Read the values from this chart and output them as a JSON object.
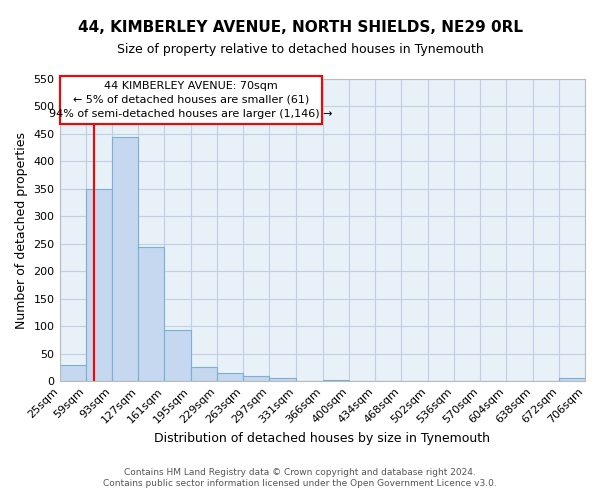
{
  "title": "44, KIMBERLEY AVENUE, NORTH SHIELDS, NE29 0RL",
  "subtitle": "Size of property relative to detached houses in Tynemouth",
  "xlabel": "Distribution of detached houses by size in Tynemouth",
  "ylabel": "Number of detached properties",
  "bin_edges": [
    25,
    59,
    93,
    127,
    161,
    195,
    229,
    263,
    297,
    331,
    366,
    400,
    434,
    468,
    502,
    536,
    570,
    604,
    638,
    672,
    706
  ],
  "bin_labels": [
    "25sqm",
    "59sqm",
    "93sqm",
    "127sqm",
    "161sqm",
    "195sqm",
    "229sqm",
    "263sqm",
    "297sqm",
    "331sqm",
    "366sqm",
    "400sqm",
    "434sqm",
    "468sqm",
    "502sqm",
    "536sqm",
    "570sqm",
    "604sqm",
    "638sqm",
    "672sqm",
    "706sqm"
  ],
  "bar_heights": [
    30,
    350,
    445,
    245,
    93,
    25,
    15,
    10,
    5,
    0,
    3,
    0,
    0,
    0,
    0,
    0,
    0,
    0,
    0,
    5
  ],
  "bar_color": "#c5d8ef",
  "bar_edge_color": "#7bafd4",
  "red_line_x": 70,
  "ylim": [
    0,
    550
  ],
  "yticks": [
    0,
    50,
    100,
    150,
    200,
    250,
    300,
    350,
    400,
    450,
    500,
    550
  ],
  "annotation_line1": "44 KIMBERLEY AVENUE: 70sqm",
  "annotation_line2": "← 5% of detached houses are smaller (61)",
  "annotation_line3": "94% of semi-detached houses are larger (1,146) →",
  "footer_line1": "Contains HM Land Registry data © Crown copyright and database right 2024.",
  "footer_line2": "Contains public sector information licensed under the Open Government Licence v3.0.",
  "background_color": "#ffffff",
  "axes_bg_color": "#e8f0f8",
  "grid_color": "#c0d0e0"
}
